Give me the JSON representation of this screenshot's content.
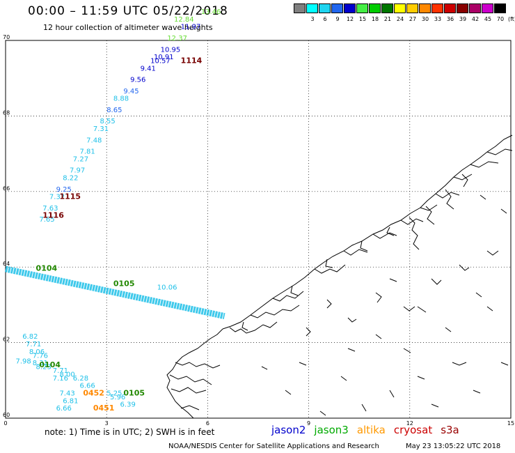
{
  "header": {
    "title": "00:00 – 11:59 UTC 05/22/2018",
    "subtitle": "12 hour collection of altimeter wave heights"
  },
  "colorbar": {
    "unit": "(ft)",
    "bins": [
      {
        "label": "",
        "color": "#808080"
      },
      {
        "label": "3",
        "color": "#00ffff"
      },
      {
        "label": "6",
        "color": "#1ed4f0"
      },
      {
        "label": "9",
        "color": "#2266ee"
      },
      {
        "label": "12",
        "color": "#0000cc"
      },
      {
        "label": "15",
        "color": "#44ee44"
      },
      {
        "label": "18",
        "color": "#00cc00"
      },
      {
        "label": "21",
        "color": "#007700"
      },
      {
        "label": "24",
        "color": "#ffff00"
      },
      {
        "label": "27",
        "color": "#ffcc00"
      },
      {
        "label": "30",
        "color": "#ff8800"
      },
      {
        "label": "33",
        "color": "#ff3300"
      },
      {
        "label": "36",
        "color": "#cc0000"
      },
      {
        "label": "39",
        "color": "#880000"
      },
      {
        "label": "42",
        "color": "#aa0066"
      },
      {
        "label": "45",
        "color": "#cc00cc"
      },
      {
        "label": "70",
        "color": "#000000"
      }
    ]
  },
  "map": {
    "lon_ticks": [
      "0",
      "3",
      "6",
      "9",
      "12",
      "15"
    ],
    "lat_ticks": [
      "60",
      "62",
      "64",
      "66",
      "68",
      "70"
    ],
    "lat_range": [
      60,
      70
    ],
    "lon_range": [
      0,
      15
    ],
    "grid": "dotted",
    "track_upper": {
      "color": "#1ec0e8",
      "heights": [
        {
          "lat": 65.2,
          "lon": 1.0,
          "value": "7.65",
          "color": "#1ec0e8"
        },
        {
          "lat": 65.5,
          "lon": 1.1,
          "value": "7.63",
          "color": "#1ec0e8"
        },
        {
          "lat": 65.8,
          "lon": 1.3,
          "value": "7.32",
          "color": "#1ec0e8"
        },
        {
          "lat": 66.0,
          "lon": 1.5,
          "value": "9.25",
          "color": "#2266ee"
        },
        {
          "lat": 66.3,
          "lon": 1.7,
          "value": "8.22",
          "color": "#1ec0e8"
        },
        {
          "lat": 66.5,
          "lon": 1.9,
          "value": "7.97",
          "color": "#1ec0e8"
        },
        {
          "lat": 66.8,
          "lon": 2.0,
          "value": "7.27",
          "color": "#1ec0e8"
        },
        {
          "lat": 67.0,
          "lon": 2.2,
          "value": "7.81",
          "color": "#1ec0e8"
        },
        {
          "lat": 67.3,
          "lon": 2.4,
          "value": "7.48",
          "color": "#1ec0e8"
        },
        {
          "lat": 67.6,
          "lon": 2.6,
          "value": "7.31",
          "color": "#1ec0e8"
        },
        {
          "lat": 67.8,
          "lon": 2.8,
          "value": "8.55",
          "color": "#1ec0e8"
        },
        {
          "lat": 68.1,
          "lon": 3.0,
          "value": "8.65",
          "color": "#2266ee"
        },
        {
          "lat": 68.4,
          "lon": 3.2,
          "value": "8.88",
          "color": "#1ec0e8"
        },
        {
          "lat": 68.6,
          "lon": 3.5,
          "value": "9.45",
          "color": "#2266ee"
        },
        {
          "lat": 68.9,
          "lon": 3.7,
          "value": "9.56",
          "color": "#0000cc"
        },
        {
          "lat": 69.2,
          "lon": 4.0,
          "value": "9.41",
          "color": "#0000cc"
        },
        {
          "lat": 69.4,
          "lon": 4.3,
          "value": "10.57",
          "color": "#0000cc"
        },
        {
          "lat": 69.5,
          "lon": 4.4,
          "value": "10.91",
          "color": "#0000cc"
        },
        {
          "lat": 69.7,
          "lon": 4.6,
          "value": "10.95",
          "color": "#0000cc"
        },
        {
          "lat": 70.0,
          "lon": 4.8,
          "value": "12.37",
          "color": "#66dd33"
        },
        {
          "lat": 70.3,
          "lon": 5.2,
          "value": "11.97",
          "color": "#0000cc"
        },
        {
          "lat": 70.5,
          "lon": 5.0,
          "value": "12.84",
          "color": "#66dd33"
        },
        {
          "lat": 70.7,
          "lon": 5.8,
          "value": "13.46",
          "color": "#66dd33"
        }
      ],
      "times": [
        {
          "lat": 69.4,
          "lon": 5.2,
          "label": "1114",
          "color": "#770000"
        },
        {
          "lat": 65.8,
          "lon": 1.6,
          "label": "1115",
          "color": "#770000"
        },
        {
          "lat": 65.3,
          "lon": 1.1,
          "label": "1116",
          "color": "#770000"
        }
      ]
    },
    "track_middle": {
      "color": "#1ec0e8",
      "times": [
        {
          "lat": 63.9,
          "lon": 0.9,
          "label": "0104",
          "color": "#228800"
        },
        {
          "lat": 63.5,
          "lon": 3.2,
          "label": "0105",
          "color": "#228800"
        }
      ],
      "heights": [
        {
          "lat": 63.4,
          "lon": 4.5,
          "value": "10.06",
          "color": "#1ec0e8"
        }
      ]
    },
    "track_lower": {
      "color": "#1ec0e8",
      "heights": [
        {
          "lat": 62.1,
          "lon": 0.5,
          "value": "6.82",
          "color": "#1ec0e8"
        },
        {
          "lat": 61.9,
          "lon": 0.6,
          "value": "7.71",
          "color": "#1ec0e8"
        },
        {
          "lat": 61.7,
          "lon": 0.7,
          "value": "8.06",
          "color": "#1ec0e8"
        },
        {
          "lat": 61.6,
          "lon": 0.8,
          "value": "7.76",
          "color": "#1ec0e8"
        },
        {
          "lat": 61.45,
          "lon": 0.3,
          "value": "7.98",
          "color": "#1ec0e8"
        },
        {
          "lat": 61.4,
          "lon": 0.8,
          "value": "8.31",
          "color": "#1ec0e8"
        },
        {
          "lat": 61.3,
          "lon": 0.9,
          "value": "8.23",
          "color": "#1ec0e8"
        },
        {
          "lat": 61.2,
          "lon": 1.4,
          "value": "7.71",
          "color": "#1ec0e8"
        },
        {
          "lat": 61.1,
          "lon": 1.6,
          "value": "8.00",
          "color": "#1ec0e8"
        },
        {
          "lat": 61.0,
          "lon": 1.4,
          "value": "7.16",
          "color": "#1ec0e8"
        },
        {
          "lat": 61.0,
          "lon": 2.0,
          "value": "6.28",
          "color": "#1ec0e8"
        },
        {
          "lat": 60.8,
          "lon": 2.2,
          "value": "6.66",
          "color": "#1ec0e8"
        },
        {
          "lat": 60.6,
          "lon": 1.6,
          "value": "7.43",
          "color": "#1ec0e8"
        },
        {
          "lat": 60.6,
          "lon": 3.0,
          "value": "5.25",
          "color": "#1ec0e8"
        },
        {
          "lat": 60.5,
          "lon": 3.1,
          "value": "5.96",
          "color": "#1ec0e8"
        },
        {
          "lat": 60.4,
          "lon": 1.7,
          "value": "6.81",
          "color": "#1ec0e8"
        },
        {
          "lat": 60.3,
          "lon": 3.4,
          "value": "6.39",
          "color": "#1ec0e8"
        },
        {
          "lat": 60.2,
          "lon": 1.5,
          "value": "6.66",
          "color": "#1ec0e8"
        }
      ],
      "times": [
        {
          "lat": 61.35,
          "lon": 1.0,
          "label": "0104",
          "color": "#228800"
        },
        {
          "lat": 60.6,
          "lon": 3.5,
          "label": "0105",
          "color": "#228800"
        },
        {
          "lat": 60.6,
          "lon": 2.3,
          "label": "0452",
          "color": "#ff8800"
        },
        {
          "lat": 60.2,
          "lon": 2.6,
          "label": "0451",
          "color": "#ff8800"
        }
      ]
    }
  },
  "footer": {
    "note": "note: 1) Time is in UTC; 2) SWH is in feet",
    "satellites": [
      {
        "name": "jason2",
        "color": "#0000cc"
      },
      {
        "name": "jason3",
        "color": "#00aa00"
      },
      {
        "name": "altika",
        "color": "#ff9900"
      },
      {
        "name": "cryosat",
        "color": "#cc0000"
      },
      {
        "name": "s3a",
        "color": "#990000"
      }
    ],
    "credit": "NOAA/NESDIS Center for Satellite Applications and Research",
    "timestamp": "May 23 13:05:22 UTC 2018"
  }
}
